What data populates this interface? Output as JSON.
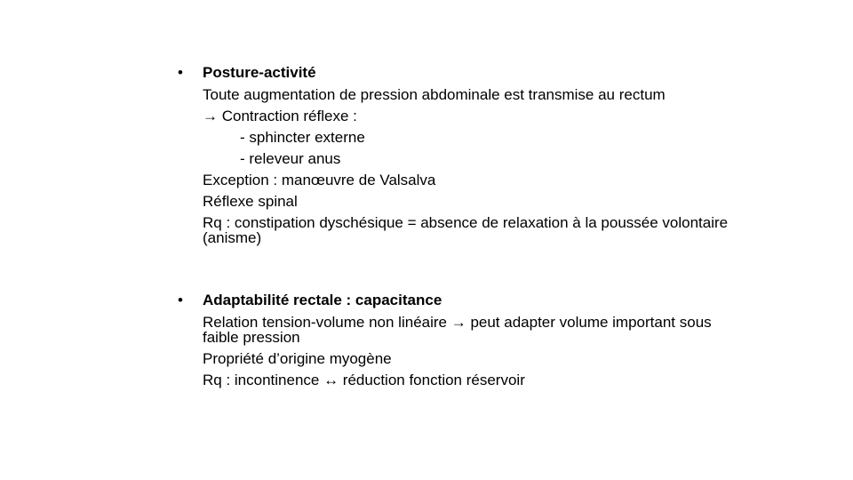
{
  "sections": [
    {
      "bullet": "•",
      "heading": "Posture-activité",
      "lines": [
        "Toute augmentation de pression abdominale est transmise au rectum",
        "→ Contraction réflexe :",
        "- sphincter externe",
        "- releveur anus",
        "Exception : manœuvre de Valsalva",
        "Réflexe spinal",
        "Rq : constipation dyschésique = absence de relaxation à la poussée volontaire (anisme)"
      ]
    },
    {
      "bullet": "•",
      "heading": "Adaptabilité rectale : capacitance",
      "lines": [
        "Relation tension-volume non linéaire → peut adapter volume important sous faible pression",
        "Propriété d’origine myogène",
        "Rq : incontinence ↔ réduction fonction réservoir"
      ]
    }
  ]
}
